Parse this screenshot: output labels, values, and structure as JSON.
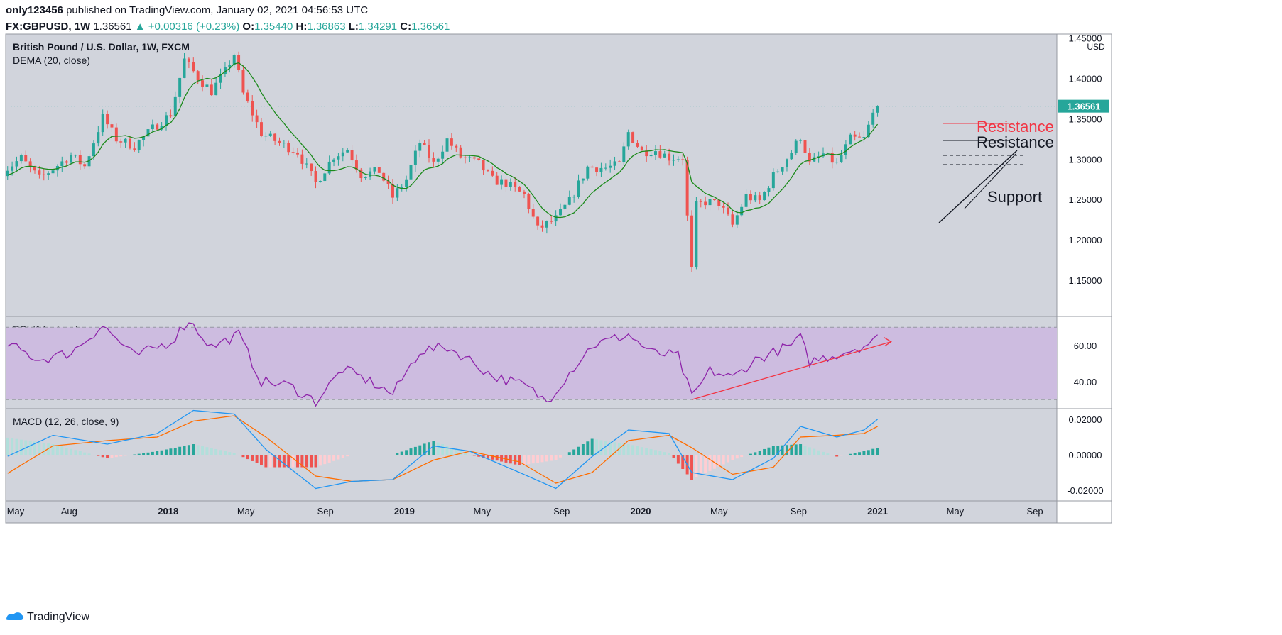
{
  "header": {
    "author": "only123456",
    "published_text": "published on TradingView.com, January 02, 2021 04:56:53 UTC",
    "symbol": "FX:GBPUSD, 1W",
    "price": "1.36561",
    "change": "+0.00316 (+0.23%)",
    "o_label": "O:",
    "o_value": "1.35440",
    "h_label": "H:",
    "h_value": "1.36863",
    "l_label": "L:",
    "l_value": "1.34291",
    "c_label": "C:",
    "c_value": "1.36561"
  },
  "brand": {
    "name": "TradingView",
    "icon": "tradingview-logo-icon"
  },
  "colors": {
    "up": "#26a69a",
    "down": "#ef5350",
    "dema": "#1b8a1b",
    "rsi": "#8e24aa",
    "rsi_band": "#cdbce0",
    "macd": "#2196f3",
    "signal": "#ff6d00",
    "pane_bg": "#d1d4dc",
    "annot_red": "#f23645",
    "annot_black": "#131722"
  },
  "chart_data": [
    {
      "type": "candlestick",
      "title": "British Pound / U.S. Dollar, 1W, FXCM",
      "indicator": "DEMA (20, close)",
      "currency": "USD",
      "last_price_label": "1.36561",
      "ylim": [
        1.105,
        1.455
      ],
      "y_ticks": [
        "1.45000",
        "1.40000",
        "1.35000",
        "1.30000",
        "1.25000",
        "1.20000",
        "1.15000"
      ],
      "x_ticks": [
        "May",
        "Aug",
        "2018",
        "May",
        "Sep",
        "2019",
        "May",
        "Sep",
        "2020",
        "May",
        "Sep",
        "2021",
        "May",
        "Sep"
      ],
      "x_tick_dates": [
        "2017-05-01",
        "2017-08-01",
        "2018-01-01",
        "2018-05-01",
        "2018-09-01",
        "2019-01-01",
        "2019-05-01",
        "2019-09-01",
        "2020-01-01",
        "2020-05-01",
        "2020-09-01",
        "2021-01-01",
        "2021-05-01",
        "2021-09-01"
      ],
      "x_range_dates": [
        "2017-04-25",
        "2021-10-05"
      ],
      "close_series": [
        [
          "2017-04-21",
          1.285
        ],
        [
          "2017-05-19",
          1.301
        ],
        [
          "2017-06-16",
          1.276
        ],
        [
          "2017-07-07",
          1.288
        ],
        [
          "2017-08-04",
          1.305
        ],
        [
          "2017-08-25",
          1.291
        ],
        [
          "2017-09-22",
          1.352
        ],
        [
          "2017-10-13",
          1.325
        ],
        [
          "2017-11-10",
          1.316
        ],
        [
          "2017-12-08",
          1.338
        ],
        [
          "2018-01-05",
          1.356
        ],
        [
          "2018-01-26",
          1.423
        ],
        [
          "2018-02-16",
          1.401
        ],
        [
          "2018-03-09",
          1.384
        ],
        [
          "2018-03-30",
          1.409
        ],
        [
          "2018-04-13",
          1.43
        ],
        [
          "2018-04-27",
          1.381
        ],
        [
          "2018-05-25",
          1.332
        ],
        [
          "2018-06-22",
          1.32
        ],
        [
          "2018-07-20",
          1.309
        ],
        [
          "2018-08-17",
          1.27
        ],
        [
          "2018-09-14",
          1.304
        ],
        [
          "2018-10-05",
          1.312
        ],
        [
          "2018-10-26",
          1.281
        ],
        [
          "2018-11-23",
          1.285
        ],
        [
          "2018-12-14",
          1.253
        ],
        [
          "2019-01-04",
          1.275
        ],
        [
          "2019-01-25",
          1.321
        ],
        [
          "2019-02-15",
          1.294
        ],
        [
          "2019-03-08",
          1.324
        ],
        [
          "2019-03-29",
          1.303
        ],
        [
          "2019-04-26",
          1.294
        ],
        [
          "2019-05-17",
          1.274
        ],
        [
          "2019-06-07",
          1.27
        ],
        [
          "2019-07-05",
          1.255
        ],
        [
          "2019-07-26",
          1.213
        ],
        [
          "2019-08-23",
          1.226
        ],
        [
          "2019-09-13",
          1.248
        ],
        [
          "2019-10-11",
          1.29
        ],
        [
          "2019-11-08",
          1.289
        ],
        [
          "2019-11-29",
          1.293
        ],
        [
          "2019-12-13",
          1.333
        ],
        [
          "2020-01-03",
          1.309
        ],
        [
          "2020-01-24",
          1.311
        ],
        [
          "2020-02-14",
          1.302
        ],
        [
          "2020-03-06",
          1.302
        ],
        [
          "2020-03-13",
          1.228
        ],
        [
          "2020-03-20",
          1.162
        ],
        [
          "2020-03-27",
          1.242
        ],
        [
          "2020-04-10",
          1.247
        ],
        [
          "2020-05-01",
          1.245
        ],
        [
          "2020-05-22",
          1.218
        ],
        [
          "2020-06-12",
          1.254
        ],
        [
          "2020-07-03",
          1.248
        ],
        [
          "2020-07-24",
          1.279
        ],
        [
          "2020-08-21",
          1.309
        ],
        [
          "2020-09-04",
          1.328
        ],
        [
          "2020-09-18",
          1.294
        ],
        [
          "2020-10-09",
          1.306
        ],
        [
          "2020-10-30",
          1.294
        ],
        [
          "2020-11-20",
          1.325
        ],
        [
          "2020-12-11",
          1.325
        ],
        [
          "2020-12-25",
          1.356
        ],
        [
          "2021-01-01",
          1.36561
        ]
      ]
    },
    {
      "type": "line",
      "title": "RSI (14, close)",
      "ylim": [
        25,
        76
      ],
      "y_ticks": [
        "60.00",
        "40.00"
      ],
      "band": [
        30,
        70
      ],
      "series": [
        {
          "values": [
            [
              "2017-04-21",
              62
            ],
            [
              "2017-06-16",
              52
            ],
            [
              "2017-08-04",
              56
            ],
            [
              "2017-09-22",
              71
            ],
            [
              "2017-11-10",
              54
            ],
            [
              "2018-01-05",
              62
            ],
            [
              "2018-02-02",
              74
            ],
            [
              "2018-03-09",
              59
            ],
            [
              "2018-04-20",
              66
            ],
            [
              "2018-05-25",
              40
            ],
            [
              "2018-07-06",
              38
            ],
            [
              "2018-08-17",
              29
            ],
            [
              "2018-09-28",
              47
            ],
            [
              "2018-11-09",
              40
            ],
            [
              "2018-12-14",
              33
            ],
            [
              "2019-01-25",
              57
            ],
            [
              "2019-03-08",
              59
            ],
            [
              "2019-04-12",
              52
            ],
            [
              "2019-05-17",
              43
            ],
            [
              "2019-07-05",
              38
            ],
            [
              "2019-08-09",
              29
            ],
            [
              "2019-09-13",
              45
            ],
            [
              "2019-10-18",
              60
            ],
            [
              "2019-12-13",
              66
            ],
            [
              "2020-01-17",
              56
            ],
            [
              "2020-02-28",
              54
            ],
            [
              "2020-03-20",
              31
            ],
            [
              "2020-04-17",
              46
            ],
            [
              "2020-05-22",
              42
            ],
            [
              "2020-06-26",
              52
            ],
            [
              "2020-08-21",
              60
            ],
            [
              "2020-09-04",
              64
            ],
            [
              "2020-09-18",
              51
            ],
            [
              "2020-10-30",
              55
            ],
            [
              "2020-12-11",
              60
            ],
            [
              "2020-12-25",
              62
            ],
            [
              "2021-01-01",
              64
            ]
          ]
        }
      ],
      "annotation_trendline": [
        [
          "2020-03-20",
          30
        ],
        [
          "2021-01-22",
          62
        ]
      ]
    },
    {
      "type": "line",
      "title": "MACD (12, 26, close, 9)",
      "ylim": [
        -0.026,
        0.026
      ],
      "y_ticks": [
        "0.02000",
        "0.00000",
        "-0.02000"
      ],
      "series": [
        {
          "name": "MACD",
          "values": [
            [
              "2017-04-21",
              -0.002
            ],
            [
              "2017-07-07",
              0.011
            ],
            [
              "2017-09-29",
              0.006
            ],
            [
              "2017-12-15",
              0.012
            ],
            [
              "2018-02-09",
              0.025
            ],
            [
              "2018-04-13",
              0.023
            ],
            [
              "2018-06-01",
              0.003
            ],
            [
              "2018-08-17",
              -0.019
            ],
            [
              "2018-10-12",
              -0.015
            ],
            [
              "2018-12-14",
              -0.014
            ],
            [
              "2019-02-15",
              0.005
            ],
            [
              "2019-04-12",
              0.002
            ],
            [
              "2019-06-28",
              -0.01
            ],
            [
              "2019-08-23",
              -0.019
            ],
            [
              "2019-10-18",
              -0.001
            ],
            [
              "2019-12-13",
              0.014
            ],
            [
              "2020-02-14",
              0.012
            ],
            [
              "2020-03-20",
              -0.01
            ],
            [
              "2020-05-22",
              -0.014
            ],
            [
              "2020-07-24",
              -0.002
            ],
            [
              "2020-09-04",
              0.016
            ],
            [
              "2020-10-30",
              0.01
            ],
            [
              "2020-12-11",
              0.014
            ],
            [
              "2021-01-01",
              0.02
            ]
          ]
        },
        {
          "name": "Signal",
          "values": [
            [
              "2017-04-21",
              -0.012
            ],
            [
              "2017-07-07",
              0.005
            ],
            [
              "2017-09-29",
              0.008
            ],
            [
              "2017-12-15",
              0.01
            ],
            [
              "2018-02-09",
              0.019
            ],
            [
              "2018-04-13",
              0.022
            ],
            [
              "2018-06-01",
              0.01
            ],
            [
              "2018-08-17",
              -0.012
            ],
            [
              "2018-10-12",
              -0.015
            ],
            [
              "2018-12-14",
              -0.014
            ],
            [
              "2019-02-15",
              -0.003
            ],
            [
              "2019-04-12",
              0.002
            ],
            [
              "2019-06-28",
              -0.004
            ],
            [
              "2019-08-23",
              -0.016
            ],
            [
              "2019-10-18",
              -0.01
            ],
            [
              "2019-12-13",
              0.008
            ],
            [
              "2020-02-14",
              0.011
            ],
            [
              "2020-03-20",
              0.004
            ],
            [
              "2020-05-22",
              -0.011
            ],
            [
              "2020-07-24",
              -0.007
            ],
            [
              "2020-09-04",
              0.01
            ],
            [
              "2020-10-30",
              0.011
            ],
            [
              "2020-12-11",
              0.012
            ],
            [
              "2021-01-01",
              0.016
            ]
          ]
        }
      ]
    }
  ],
  "annotations": {
    "resistance_red": "Resistance",
    "resistance_black": "Resistance",
    "support": "Support"
  }
}
